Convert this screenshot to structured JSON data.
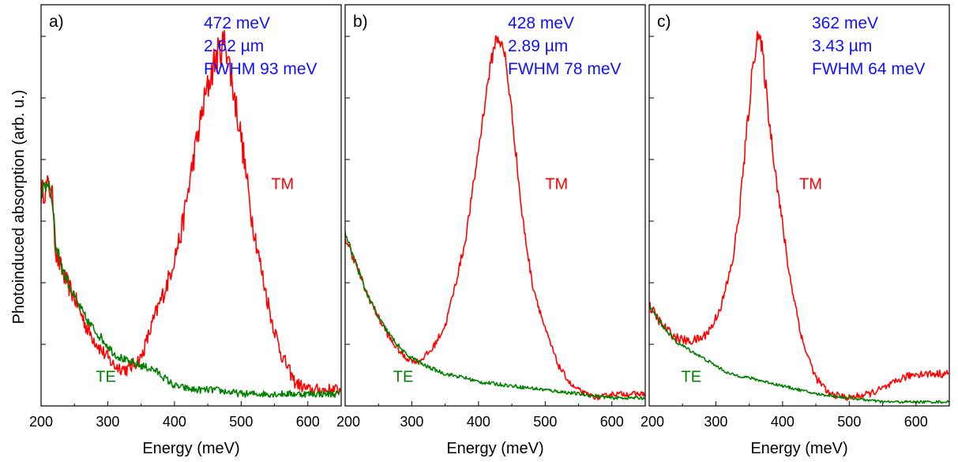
{
  "figure": {
    "ylabel": "Photoinduced absorption (arb. u.)",
    "xlabel": "Energy (meV)",
    "colors": {
      "TM": "#ff0000",
      "TE": "#008000",
      "annotation": "#1010ff",
      "axis": "#000000"
    }
  },
  "chart_data": [
    {
      "type": "line",
      "panel_label": "a)",
      "annotation_lines": [
        "472 meV",
        "2.62 µm",
        "FWHM 93 meV"
      ],
      "xlabel": "Energy (meV)",
      "ylabel": "Photoinduced absorption (arb. u.)",
      "xlim": [
        200,
        650
      ],
      "ylim": [
        0,
        1
      ],
      "x_ticks": [
        200,
        300,
        400,
        500,
        600
      ],
      "tick_labels": [
        "200",
        "300",
        "400",
        "500",
        "600"
      ],
      "y_tick_count": 6,
      "grid": false,
      "series": [
        {
          "name": "TM",
          "label_at": [
            545,
            0.54
          ],
          "noise": 0.035,
          "x": [
            200,
            212,
            218,
            222,
            235,
            250,
            270,
            290,
            310,
            330,
            350,
            370,
            390,
            410,
            430,
            445,
            460,
            470,
            477,
            485,
            500,
            515,
            530,
            545,
            560,
            580,
            600,
            620,
            650
          ],
          "y": [
            0.53,
            0.55,
            0.51,
            0.38,
            0.32,
            0.27,
            0.19,
            0.14,
            0.1,
            0.09,
            0.12,
            0.22,
            0.31,
            0.43,
            0.63,
            0.76,
            0.86,
            0.89,
            0.91,
            0.82,
            0.67,
            0.48,
            0.34,
            0.22,
            0.13,
            0.06,
            0.04,
            0.04,
            0.04
          ]
        },
        {
          "name": "TE",
          "label_at": [
            282,
            0.06
          ],
          "noise": 0.02,
          "x": [
            200,
            212,
            218,
            222,
            235,
            250,
            270,
            290,
            310,
            330,
            350,
            370,
            400,
            430,
            460,
            500,
            550,
            600,
            650
          ],
          "y": [
            0.53,
            0.56,
            0.5,
            0.4,
            0.33,
            0.27,
            0.21,
            0.17,
            0.13,
            0.11,
            0.1,
            0.09,
            0.05,
            0.04,
            0.04,
            0.03,
            0.03,
            0.03,
            0.03
          ]
        }
      ]
    },
    {
      "type": "line",
      "panel_label": "b)",
      "annotation_lines": [
        "428 meV",
        "2.89 µm",
        "FWHM 78 meV"
      ],
      "xlabel": "Energy (meV)",
      "ylabel": "Photoinduced absorption (arb. u.)",
      "xlim": [
        200,
        650
      ],
      "ylim": [
        0,
        1
      ],
      "x_ticks": [
        200,
        300,
        400,
        500,
        600
      ],
      "tick_labels": [
        "200",
        "300",
        "400",
        "500",
        "600"
      ],
      "y_tick_count": 6,
      "grid": false,
      "series": [
        {
          "name": "TM",
          "label_at": [
            500,
            0.54
          ],
          "noise": 0.015,
          "x": [
            200,
            215,
            230,
            250,
            270,
            290,
            310,
            330,
            350,
            365,
            380,
            395,
            405,
            415,
            425,
            430,
            440,
            450,
            465,
            480,
            500,
            520,
            540,
            560,
            580,
            600,
            620,
            650
          ],
          "y": [
            0.42,
            0.36,
            0.29,
            0.22,
            0.16,
            0.12,
            0.11,
            0.14,
            0.2,
            0.3,
            0.41,
            0.58,
            0.7,
            0.82,
            0.91,
            0.92,
            0.87,
            0.73,
            0.48,
            0.31,
            0.19,
            0.1,
            0.05,
            0.03,
            0.02,
            0.03,
            0.03,
            0.03
          ]
        },
        {
          "name": "TE",
          "label_at": [
            272,
            0.06
          ],
          "noise": 0.01,
          "x": [
            200,
            215,
            230,
            250,
            270,
            290,
            300,
            320,
            350,
            380,
            400,
            450,
            500,
            550,
            600,
            650
          ],
          "y": [
            0.43,
            0.36,
            0.29,
            0.22,
            0.17,
            0.13,
            0.12,
            0.1,
            0.08,
            0.07,
            0.06,
            0.05,
            0.04,
            0.03,
            0.02,
            0.02
          ]
        }
      ]
    },
    {
      "type": "line",
      "panel_label": "c)",
      "annotation_lines": [
        "362 meV",
        "3.43 µm",
        "FWHM 64 meV"
      ],
      "xlabel": "Energy (meV)",
      "ylabel": "Photoinduced absorption (arb. u.)",
      "xlim": [
        200,
        650
      ],
      "ylim": [
        0,
        1
      ],
      "x_ticks": [
        200,
        300,
        400,
        500,
        600
      ],
      "tick_labels": [
        "200",
        "300",
        "400",
        "500",
        "600"
      ],
      "y_tick_count": 6,
      "grid": false,
      "series": [
        {
          "name": "TM",
          "label_at": [
            425,
            0.54
          ],
          "noise": 0.02,
          "x": [
            200,
            220,
            240,
            260,
            280,
            295,
            310,
            325,
            335,
            345,
            355,
            362,
            370,
            380,
            395,
            410,
            430,
            450,
            470,
            500,
            530,
            560,
            580,
            600,
            620,
            650
          ],
          "y": [
            0.25,
            0.2,
            0.17,
            0.16,
            0.17,
            0.2,
            0.26,
            0.36,
            0.48,
            0.66,
            0.84,
            0.93,
            0.88,
            0.71,
            0.51,
            0.33,
            0.16,
            0.07,
            0.03,
            0.02,
            0.03,
            0.05,
            0.07,
            0.08,
            0.08,
            0.08
          ]
        },
        {
          "name": "TE",
          "label_at": [
            248,
            0.06
          ],
          "noise": 0.008,
          "x": [
            200,
            220,
            240,
            260,
            290,
            320,
            350,
            400,
            450,
            500,
            550,
            600,
            650
          ],
          "y": [
            0.25,
            0.2,
            0.16,
            0.14,
            0.11,
            0.08,
            0.07,
            0.05,
            0.03,
            0.02,
            0.01,
            0.01,
            0.01
          ]
        }
      ]
    }
  ]
}
